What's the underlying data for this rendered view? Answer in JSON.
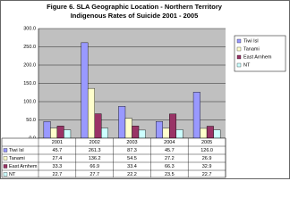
{
  "chart_data": {
    "type": "bar",
    "title": [
      "Figure 6. SLA Geographic Location - Northern Territory",
      "Indigenous Rates of Suicide 2001 - 2005"
    ],
    "categories": [
      "2001",
      "2002",
      "2003",
      "2004",
      "2005"
    ],
    "series": [
      {
        "name": "Tiwi Isl",
        "color": "#9999ff",
        "values": [
          45.7,
          261.3,
          87.3,
          45.7,
          126.0
        ],
        "value_labels": [
          "45.7",
          "261.3",
          "87.3",
          "45.7",
          "126.0"
        ]
      },
      {
        "name": "Tanami",
        "color": "#ffffcc",
        "values": [
          27.4,
          136.2,
          54.5,
          27.2,
          26.9
        ],
        "value_labels": [
          "27.4",
          "136.2",
          "54.5",
          "27.2",
          "26.9"
        ]
      },
      {
        "name": "East Arnhem",
        "color": "#993366",
        "values": [
          33.3,
          66.9,
          33.4,
          66.3,
          32.9
        ],
        "value_labels": [
          "33.3",
          "66.9",
          "33.4",
          "66.3",
          "32.9"
        ]
      },
      {
        "name": "NT",
        "color": "#ccffff",
        "values": [
          22.7,
          27.7,
          22.2,
          23.5,
          22.7
        ],
        "value_labels": [
          "22.7",
          "27.7",
          "22.2",
          "23.5",
          "22.7"
        ]
      }
    ],
    "ylim": [
      0,
      300
    ],
    "yticks": [
      {
        "value": 0,
        "label": "0.0"
      },
      {
        "value": 50,
        "label": "50.0"
      },
      {
        "value": 100,
        "label": "100.0"
      },
      {
        "value": 150,
        "label": "150.0"
      },
      {
        "value": 200,
        "label": "200.0"
      },
      {
        "value": 250,
        "label": "250.0"
      },
      {
        "value": 300,
        "label": "300.0"
      }
    ],
    "grid": true,
    "legend": "right"
  }
}
